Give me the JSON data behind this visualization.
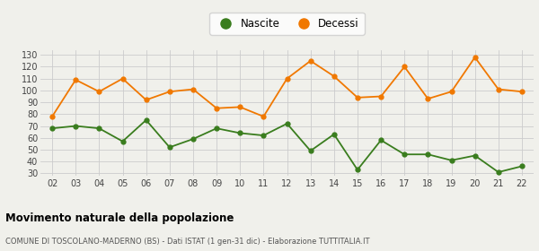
{
  "years": [
    "02",
    "03",
    "04",
    "05",
    "06",
    "07",
    "08",
    "09",
    "10",
    "11",
    "12",
    "13",
    "14",
    "15",
    "16",
    "17",
    "18",
    "19",
    "20",
    "21",
    "22"
  ],
  "nascite": [
    68,
    70,
    68,
    57,
    75,
    52,
    59,
    68,
    64,
    62,
    72,
    49,
    63,
    33,
    58,
    46,
    46,
    41,
    45,
    31,
    36
  ],
  "decessi": [
    78,
    109,
    99,
    110,
    92,
    99,
    101,
    85,
    86,
    78,
    110,
    125,
    112,
    94,
    95,
    120,
    93,
    99,
    128,
    101,
    99
  ],
  "nascite_color": "#3a7d1e",
  "decessi_color": "#f07800",
  "bg_color": "#f0f0eb",
  "grid_color": "#cccccc",
  "title": "Movimento naturale della popolazione",
  "subtitle": "COMUNE DI TOSCOLANO-MADERNO (BS) - Dati ISTAT (1 gen-31 dic) - Elaborazione TUTTITALIA.IT",
  "legend_nascite": "Nascite",
  "legend_decessi": "Decessi",
  "ylim_min": 28,
  "ylim_max": 134,
  "yticks": [
    30,
    40,
    50,
    60,
    70,
    80,
    90,
    100,
    110,
    120,
    130
  ]
}
